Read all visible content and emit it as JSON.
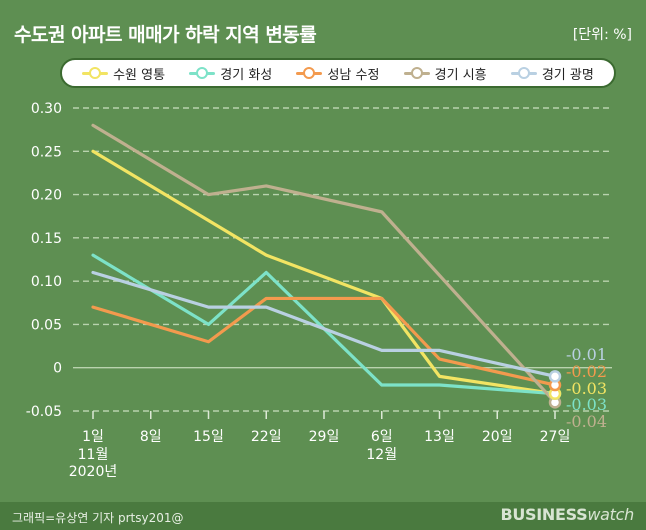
{
  "title": "수도권 아파트 매매가 하락 지역 변동률",
  "unit": "[단위: %]",
  "credit": "그래픽=유상연 기자 prtsy201@",
  "brand": {
    "bold": "BUSINESS",
    "light": "watch"
  },
  "chart_data": {
    "type": "line",
    "title": "수도권 아파트 매매가 하락 지역 변동률",
    "ylabel": "",
    "xlabel": "",
    "ylim": [
      -0.05,
      0.3
    ],
    "yticks": [
      "0.30",
      "0.25",
      "0.20",
      "0.15",
      "0.10",
      "0.05",
      "0",
      "-0.05"
    ],
    "ytick_values": [
      0.3,
      0.25,
      0.2,
      0.15,
      0.1,
      0.05,
      0,
      -0.05
    ],
    "categories": [
      "1일",
      "8일",
      "15일",
      "22일",
      "29일",
      "6일",
      "13일",
      "20일",
      "27일"
    ],
    "sublabels": [
      [
        "11월",
        "2020년"
      ],
      [],
      [],
      [],
      [],
      [
        "12월"
      ],
      [],
      [],
      []
    ],
    "grid": true,
    "legend": "top",
    "series": [
      {
        "name": "수원 영통",
        "color": "#f2e463",
        "values": [
          0.25,
          null,
          null,
          0.13,
          null,
          0.08,
          -0.01,
          null,
          -0.03
        ],
        "end_label": "-0.03"
      },
      {
        "name": "경기 화성",
        "color": "#7de2c8",
        "values": [
          0.13,
          null,
          0.05,
          0.11,
          null,
          -0.02,
          -0.02,
          null,
          -0.03
        ],
        "end_label": "-0.03"
      },
      {
        "name": "성남 수정",
        "color": "#f39a4e",
        "values": [
          0.07,
          null,
          0.03,
          0.08,
          null,
          0.08,
          0.01,
          null,
          -0.02
        ],
        "end_label": "-0.02"
      },
      {
        "name": "경기 시흥",
        "color": "#bfb08f",
        "values": [
          0.28,
          null,
          0.2,
          0.21,
          null,
          0.18,
          null,
          null,
          -0.04
        ],
        "end_label": "-0.04"
      },
      {
        "name": "경기 광명",
        "color": "#b9d0e2",
        "values": [
          0.11,
          null,
          0.07,
          0.07,
          null,
          0.02,
          0.02,
          null,
          -0.01
        ],
        "end_label": "-0.01"
      }
    ]
  }
}
